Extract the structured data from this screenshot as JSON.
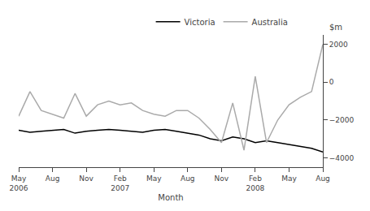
{
  "chart_data": {
    "type": "line",
    "xlabel": "Month",
    "ylabel": "$m",
    "categories": [
      "May\n2006",
      null,
      null,
      "Aug",
      null,
      null,
      "Nov",
      null,
      null,
      "Feb\n2007",
      null,
      null,
      "May",
      null,
      null,
      "Aug",
      null,
      null,
      "Nov",
      null,
      null,
      "Feb\n2008",
      null,
      null,
      "May",
      null,
      null,
      "Aug"
    ],
    "series": [
      {
        "name": "Victoria",
        "color": "#000000",
        "values": [
          -2550,
          -2650,
          -2600,
          -2550,
          -2500,
          -2700,
          -2600,
          -2550,
          -2500,
          -2550,
          -2600,
          -2650,
          -2550,
          -2500,
          -2600,
          -2700,
          -2800,
          -3000,
          -3100,
          -2900,
          -3000,
          -3200,
          -3100,
          -3200,
          -3300,
          -3400,
          -3500,
          -3700
        ]
      },
      {
        "name": "Australia",
        "color": "#aaaaaa",
        "values": [
          -1800,
          -500,
          -1500,
          -1700,
          -1900,
          -600,
          -1800,
          -1200,
          -1000,
          -1200,
          -1100,
          -1500,
          -1700,
          -1800,
          -1500,
          -1500,
          -1900,
          -2500,
          -3200,
          -1100,
          -3600,
          300,
          -3200,
          -2000,
          -1200,
          -800,
          -500,
          2000
        ]
      }
    ],
    "ylim": [
      -4500,
      2500
    ],
    "yticks": [
      {
        "value": -4000,
        "label": "−4000"
      },
      {
        "value": -2000,
        "label": "−2000"
      },
      0,
      2000
    ],
    "grid": false,
    "legend": "upper right"
  }
}
